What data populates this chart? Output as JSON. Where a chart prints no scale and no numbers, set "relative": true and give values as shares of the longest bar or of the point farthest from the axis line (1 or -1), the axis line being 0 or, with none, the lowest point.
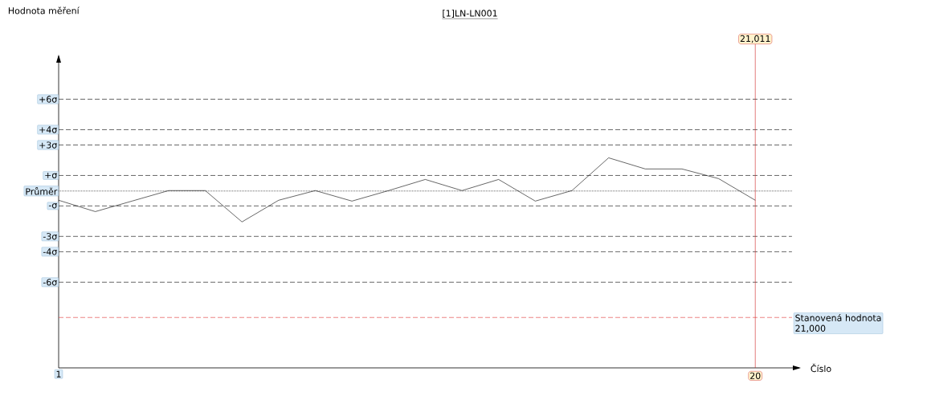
{
  "chart_data": {
    "type": "line",
    "title": "[1]LN-LN001",
    "xlabel": "Číslo",
    "relative": true,
    "x": [
      1,
      2,
      3,
      4,
      5,
      6,
      7,
      8,
      9,
      10,
      11,
      12,
      13,
      14,
      15,
      16,
      17,
      18,
      19,
      20
    ],
    "series": [
      {
        "color": "#000000",
        "values": [
          0.798,
          0.744,
          0.794,
          0.844,
          0.844,
          0.695,
          0.798,
          0.844,
          0.794,
          0.844,
          0.897,
          0.844,
          0.897,
          0.794,
          0.844,
          1.0,
          0.947,
          0.947,
          0.901,
          0.798
        ]
      }
    ],
    "xlim": [
      1,
      21.2
    ],
    "xticks": [
      1,
      20
    ],
    "tick_labels": "x",
    "ref_lines": [
      {
        "axis": "y",
        "value": 1.279,
        "label": "+6σ",
        "color": "#000000",
        "line_style": "dashed"
      },
      {
        "axis": "y",
        "value": 1.134,
        "label": "+4σ",
        "color": "#000000",
        "line_style": "dashed"
      },
      {
        "axis": "y",
        "value": 1.061,
        "label": "+3σ",
        "color": "#000000",
        "line_style": "dashed"
      },
      {
        "axis": "y",
        "value": 0.916,
        "label": "+σ",
        "color": "#000000",
        "line_style": "dashed"
      },
      {
        "axis": "y",
        "value": 0.842,
        "label": "Průměr",
        "color": "#000000",
        "line_style": "dotted"
      },
      {
        "axis": "y",
        "value": 0.771,
        "label": "-σ",
        "color": "#000000",
        "line_style": "dashed"
      },
      {
        "axis": "y",
        "value": 0.626,
        "label": "-3σ",
        "color": "#000000",
        "line_style": "dashed"
      },
      {
        "axis": "y",
        "value": 0.553,
        "label": "-4σ",
        "color": "#000000",
        "line_style": "dashed"
      },
      {
        "axis": "y",
        "value": 0.408,
        "label": "-6σ",
        "color": "#000000",
        "line_style": "dashed"
      },
      {
        "axis": "y",
        "value": 0.24,
        "label": "Stanovená hodnota 21,000",
        "color": "#e03030",
        "line_style": "dashed"
      },
      {
        "axis": "x",
        "value": 20,
        "color": "#cc2222",
        "line_style": "solid"
      }
    ],
    "annotations": [
      {
        "text": "Hodnota měření"
      },
      "21,011"
    ]
  }
}
